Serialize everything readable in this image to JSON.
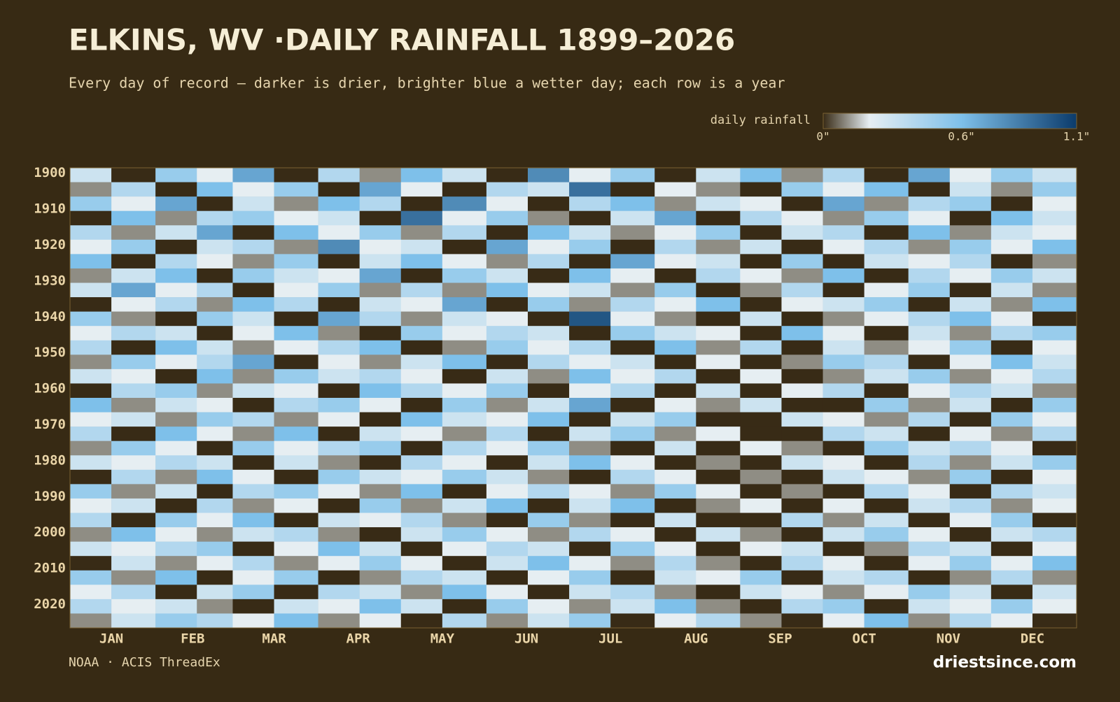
{
  "chart_data": {
    "type": "heatmap",
    "title": "ELKINS, WV ·DAILY RAINFALL 1899–2026",
    "subtitle": "Every day of record — darker is drier, brighter blue a wetter day; each row is a year",
    "source": "NOAA · ACIS ThreadEx",
    "brand": "driestsince.com",
    "legend_title": "daily rainfall",
    "colorscale": [
      {
        "value": 0,
        "color": "#382b16"
      },
      {
        "value": 0.2,
        "color": "#e6eef2"
      },
      {
        "value": 0.6,
        "color": "#7ec0ea"
      },
      {
        "value": 1.1,
        "color": "#0b3b6b"
      }
    ],
    "clim": [
      0,
      1.1
    ],
    "cticks": [
      {
        "value": 0,
        "label": "0\""
      },
      {
        "value": 0.6,
        "label": "0.6\""
      },
      {
        "value": 1.1,
        "label": "1.1\""
      }
    ],
    "x": [
      1,
      16,
      32,
      47,
      60,
      75,
      91,
      106,
      121,
      136,
      152,
      167,
      182,
      197,
      213,
      228,
      244,
      259,
      274,
      289,
      305,
      320,
      335,
      350,
      366
    ],
    "y": [
      1899,
      1903,
      1907,
      1911,
      1915,
      1919,
      1923,
      1927,
      1931,
      1935,
      1939,
      1943,
      1947,
      1951,
      1955,
      1959,
      1963,
      1967,
      1971,
      1975,
      1979,
      1983,
      1987,
      1991,
      1995,
      1999,
      2003,
      2007,
      2011,
      2015,
      2019,
      2023,
      2027
    ],
    "xlim": [
      1,
      366
    ],
    "ylim": [
      1899,
      2027
    ],
    "xticks": [
      {
        "value": 16,
        "label": "JAN"
      },
      {
        "value": 45.5,
        "label": "FEB"
      },
      {
        "value": 75,
        "label": "MAR"
      },
      {
        "value": 105.5,
        "label": "APR"
      },
      {
        "value": 136,
        "label": "MAY"
      },
      {
        "value": 166.5,
        "label": "JUN"
      },
      {
        "value": 197,
        "label": "JUL"
      },
      {
        "value": 228,
        "label": "AUG"
      },
      {
        "value": 258.5,
        "label": "SEP"
      },
      {
        "value": 289,
        "label": "OCT"
      },
      {
        "value": 319.5,
        "label": "NOV"
      },
      {
        "value": 350,
        "label": "DEC"
      }
    ],
    "yticks": [
      1900,
      1910,
      1920,
      1930,
      1940,
      1950,
      1960,
      1970,
      1980,
      1990,
      2000,
      2010,
      2020
    ],
    "values": [
      [
        0.3,
        0,
        0.5,
        0.2,
        0.7,
        0,
        0.4,
        0.1,
        0.6,
        0.3,
        0,
        0.8,
        0.2,
        0.5,
        0,
        0.3,
        0.6,
        0.1,
        0.4,
        0,
        0.7,
        0.2,
        0.5,
        0.3
      ],
      [
        0.1,
        0.4,
        0,
        0.6,
        0.2,
        0.5,
        0,
        0.7,
        0.2,
        0,
        0.4,
        0.3,
        0.9,
        0,
        0.2,
        0.1,
        0,
        0.5,
        0.2,
        0.6,
        0,
        0.3,
        0.1,
        0.5
      ],
      [
        0.5,
        0.2,
        0.7,
        0,
        0.3,
        0.1,
        0.6,
        0.4,
        0,
        0.8,
        0.2,
        0,
        0.4,
        0.6,
        0.1,
        0.3,
        0.2,
        0,
        0.7,
        0.1,
        0.4,
        0.5,
        0,
        0.2
      ],
      [
        0,
        0.6,
        0.1,
        0.4,
        0.5,
        0.2,
        0.3,
        0,
        0.9,
        0.2,
        0.5,
        0.1,
        0,
        0.3,
        0.7,
        0,
        0.4,
        0.2,
        0.1,
        0.5,
        0.2,
        0,
        0.6,
        0.3
      ],
      [
        0.4,
        0.1,
        0.3,
        0.7,
        0,
        0.6,
        0.2,
        0.5,
        0.1,
        0.4,
        0,
        0.6,
        0.3,
        0.1,
        0.2,
        0.5,
        0,
        0.3,
        0.4,
        0,
        0.6,
        0.1,
        0.3,
        0.2
      ],
      [
        0.2,
        0.5,
        0,
        0.3,
        0.4,
        0.1,
        0.8,
        0.2,
        0.3,
        0,
        0.7,
        0.2,
        0.5,
        0,
        0.4,
        0.1,
        0.3,
        0,
        0.2,
        0.4,
        0.1,
        0.5,
        0.2,
        0.6
      ],
      [
        0.6,
        0,
        0.4,
        0.2,
        0.1,
        0.5,
        0,
        0.3,
        0.6,
        0.2,
        0.1,
        0.4,
        0,
        0.7,
        0.2,
        0.3,
        0,
        0.5,
        0,
        0.3,
        0.2,
        0.4,
        0,
        0.1
      ],
      [
        0.1,
        0.3,
        0.6,
        0,
        0.5,
        0.3,
        0.2,
        0.7,
        0,
        0.5,
        0.3,
        0,
        0.6,
        0.2,
        0,
        0.4,
        0.2,
        0.1,
        0.6,
        0,
        0.4,
        0.2,
        0.5,
        0.3
      ],
      [
        0.3,
        0.7,
        0.2,
        0.4,
        0,
        0.2,
        0.5,
        0.1,
        0.4,
        0.1,
        0.6,
        0.2,
        0.3,
        0.1,
        0.5,
        0,
        0.1,
        0.4,
        0,
        0.2,
        0.5,
        0,
        0.3,
        0.1
      ],
      [
        0,
        0.2,
        0.4,
        0.1,
        0.6,
        0.4,
        0,
        0.3,
        0.2,
        0.7,
        0,
        0.5,
        0.1,
        0.4,
        0.2,
        0.6,
        0,
        0.2,
        0.3,
        0.5,
        0,
        0.3,
        0.1,
        0.6
      ],
      [
        0.5,
        0.1,
        0,
        0.5,
        0.3,
        0,
        0.7,
        0.4,
        0.1,
        0.3,
        0.2,
        0,
        1.0,
        0.2,
        0.1,
        0,
        0.3,
        0,
        0.1,
        0.2,
        0.4,
        0.6,
        0.2,
        0
      ],
      [
        0.2,
        0.4,
        0.3,
        0,
        0.2,
        0.6,
        0.1,
        0,
        0.5,
        0.2,
        0.4,
        0.3,
        0,
        0.5,
        0.3,
        0.2,
        0,
        0.6,
        0.2,
        0,
        0.3,
        0.1,
        0.4,
        0.5
      ],
      [
        0.4,
        0,
        0.6,
        0.3,
        0.1,
        0.2,
        0.4,
        0.6,
        0,
        0.1,
        0.5,
        0.2,
        0.4,
        0,
        0.6,
        0.1,
        0.4,
        0,
        0.3,
        0.1,
        0.2,
        0.5,
        0,
        0.2
      ],
      [
        0.1,
        0.5,
        0.2,
        0.4,
        0.7,
        0,
        0.2,
        0.1,
        0.3,
        0.6,
        0,
        0.4,
        0.2,
        0.3,
        0,
        0.2,
        0,
        0.1,
        0.5,
        0.4,
        0,
        0.2,
        0.6,
        0.3
      ],
      [
        0.3,
        0.2,
        0,
        0.6,
        0.1,
        0.5,
        0.3,
        0.4,
        0.2,
        0,
        0.3,
        0.1,
        0.6,
        0.2,
        0.4,
        0,
        0.2,
        0,
        0.1,
        0.3,
        0.5,
        0.1,
        0.2,
        0.4
      ],
      [
        0,
        0.4,
        0.5,
        0.1,
        0.3,
        0.2,
        0,
        0.6,
        0.4,
        0.2,
        0.5,
        0,
        0.2,
        0.4,
        0,
        0.3,
        0,
        0.2,
        0.4,
        0,
        0.2,
        0.4,
        0.3,
        0.1
      ],
      [
        0.6,
        0.1,
        0.3,
        0.2,
        0,
        0.4,
        0.5,
        0.2,
        0,
        0.5,
        0.1,
        0.3,
        0.7,
        0,
        0.2,
        0.1,
        0.3,
        0,
        0,
        0.5,
        0.1,
        0.3,
        0,
        0.5
      ],
      [
        0.2,
        0.3,
        0.1,
        0.5,
        0.4,
        0.1,
        0.2,
        0,
        0.6,
        0.3,
        0.2,
        0.6,
        0,
        0.3,
        0.5,
        0,
        0,
        0.3,
        0.2,
        0.1,
        0.4,
        0,
        0.5,
        0.2
      ],
      [
        0.4,
        0,
        0.6,
        0.2,
        0.1,
        0.6,
        0,
        0.3,
        0.2,
        0.1,
        0.4,
        0,
        0.3,
        0.5,
        0.1,
        0.2,
        0,
        0,
        0.4,
        0.3,
        0,
        0.2,
        0.1,
        0.4
      ],
      [
        0.1,
        0.5,
        0.2,
        0,
        0.5,
        0.2,
        0.4,
        0.5,
        0,
        0.4,
        0.2,
        0.5,
        0.1,
        0,
        0.3,
        0,
        0.2,
        0.1,
        0,
        0.5,
        0.3,
        0.4,
        0.2,
        0
      ],
      [
        0.3,
        0.2,
        0.4,
        0.3,
        0,
        0.3,
        0.1,
        0,
        0.4,
        0.2,
        0,
        0.3,
        0.6,
        0.2,
        0,
        0.1,
        0,
        0.3,
        0.2,
        0,
        0.4,
        0.1,
        0.3,
        0.5
      ],
      [
        0,
        0.4,
        0.1,
        0.6,
        0.2,
        0,
        0.5,
        0.3,
        0.2,
        0.5,
        0.3,
        0.1,
        0,
        0.4,
        0.2,
        0,
        0.1,
        0,
        0.3,
        0.2,
        0.1,
        0.5,
        0,
        0.2
      ],
      [
        0.5,
        0.1,
        0.3,
        0,
        0.4,
        0.5,
        0.2,
        0.1,
        0.6,
        0,
        0.2,
        0.4,
        0.2,
        0.1,
        0.5,
        0.2,
        0,
        0.1,
        0,
        0.4,
        0.2,
        0,
        0.4,
        0.3
      ],
      [
        0.2,
        0.3,
        0,
        0.4,
        0.1,
        0.2,
        0,
        0.5,
        0.1,
        0.3,
        0.6,
        0,
        0.3,
        0.6,
        0,
        0.1,
        0.2,
        0,
        0.2,
        0,
        0.3,
        0.4,
        0.1,
        0.2
      ],
      [
        0.4,
        0,
        0.5,
        0.2,
        0.6,
        0,
        0.3,
        0.2,
        0.4,
        0.1,
        0,
        0.5,
        0.1,
        0,
        0.3,
        0,
        0,
        0.4,
        0.1,
        0.3,
        0,
        0.2,
        0.5,
        0
      ],
      [
        0.1,
        0.6,
        0.2,
        0.1,
        0.3,
        0.4,
        0.1,
        0,
        0.3,
        0.5,
        0.2,
        0.1,
        0.4,
        0.2,
        0,
        0.3,
        0.1,
        0,
        0.3,
        0.5,
        0.2,
        0,
        0.3,
        0.4
      ],
      [
        0.3,
        0.2,
        0.4,
        0.5,
        0,
        0.2,
        0.6,
        0.3,
        0,
        0.2,
        0.4,
        0.3,
        0,
        0.5,
        0.2,
        0,
        0.2,
        0.3,
        0,
        0.1,
        0.4,
        0.3,
        0,
        0.2
      ],
      [
        0,
        0.3,
        0.1,
        0.2,
        0.4,
        0.1,
        0.2,
        0.5,
        0.2,
        0,
        0.3,
        0.6,
        0.2,
        0.1,
        0.4,
        0.1,
        0,
        0.4,
        0.2,
        0,
        0.2,
        0.5,
        0.2,
        0.6
      ],
      [
        0.5,
        0.1,
        0.6,
        0,
        0.2,
        0.5,
        0,
        0.1,
        0.4,
        0.3,
        0,
        0.2,
        0.5,
        0,
        0.3,
        0.2,
        0.5,
        0,
        0.3,
        0.4,
        0,
        0.1,
        0.4,
        0.1
      ],
      [
        0.2,
        0.4,
        0,
        0.3,
        0.5,
        0,
        0.4,
        0.3,
        0.1,
        0.6,
        0.2,
        0,
        0.3,
        0.4,
        0.1,
        0,
        0.3,
        0.2,
        0.1,
        0.2,
        0.5,
        0.3,
        0,
        0.3
      ],
      [
        0.4,
        0.2,
        0.3,
        0.1,
        0,
        0.3,
        0.2,
        0.6,
        0.3,
        0,
        0.5,
        0.2,
        0.1,
        0.3,
        0.6,
        0.1,
        0,
        0.4,
        0.5,
        0,
        0.3,
        0.2,
        0.5,
        0.2
      ],
      [
        0.1,
        0.3,
        0.5,
        0.4,
        0.2,
        0.6,
        0.1,
        0.2,
        0,
        0.4,
        0.1,
        0.3,
        0.5,
        0,
        0.2,
        0.4,
        0.1,
        0,
        0.2,
        0.6,
        0.1,
        0.4,
        0.2,
        0
      ]
    ]
  }
}
